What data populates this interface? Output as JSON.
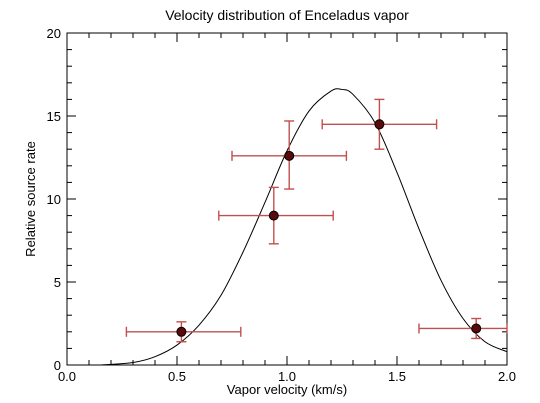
{
  "chart_data": {
    "type": "scatter",
    "title": "Velocity distribution of Enceladus vapor",
    "xlabel": "Vapor velocity (km/s)",
    "ylabel": "Relative source rate",
    "xlim": [
      0.0,
      2.0
    ],
    "ylim": [
      0,
      20
    ],
    "x_ticks": [
      0.0,
      0.5,
      1.0,
      1.5,
      2.0
    ],
    "x_tick_labels": [
      "0.0",
      "0.5",
      "1.0",
      "1.5",
      "2.0"
    ],
    "y_ticks": [
      0,
      5,
      10,
      15,
      20
    ],
    "y_tick_labels": [
      "0",
      "5",
      "10",
      "15",
      "20"
    ],
    "grid": false,
    "series": [
      {
        "type": "scatter",
        "marker_color": "#5a0a0a",
        "errorbar_color": "#c0504d",
        "points": [
          {
            "x": 0.52,
            "y": 2.0,
            "xerr_low": 0.27,
            "xerr_high": 0.79,
            "yerr_low": 1.4,
            "yerr_high": 2.6
          },
          {
            "x": 0.94,
            "y": 9.0,
            "xerr_low": 0.69,
            "xerr_high": 1.21,
            "yerr_low": 7.3,
            "yerr_high": 10.7
          },
          {
            "x": 1.01,
            "y": 12.6,
            "xerr_low": 0.75,
            "xerr_high": 1.27,
            "yerr_low": 10.6,
            "yerr_high": 14.7
          },
          {
            "x": 1.42,
            "y": 14.5,
            "xerr_low": 1.16,
            "xerr_high": 1.68,
            "yerr_low": 13.0,
            "yerr_high": 16.0
          },
          {
            "x": 1.86,
            "y": 2.2,
            "xerr_low": 1.6,
            "xerr_high": 2.0,
            "yerr_low": 1.6,
            "yerr_high": 2.8
          }
        ]
      },
      {
        "type": "line",
        "line_color": "#000000",
        "x": [
          0.15,
          0.3,
          0.4,
          0.5,
          0.6,
          0.7,
          0.8,
          0.9,
          1.0,
          1.1,
          1.2,
          1.25,
          1.3,
          1.4,
          1.5,
          1.6,
          1.7,
          1.8,
          1.9,
          2.0
        ],
        "y": [
          0.0,
          0.15,
          0.5,
          1.2,
          2.4,
          4.2,
          6.8,
          9.8,
          12.9,
          15.3,
          16.5,
          16.6,
          16.3,
          14.6,
          11.6,
          8.2,
          5.1,
          2.8,
          1.4,
          0.8
        ]
      }
    ]
  }
}
